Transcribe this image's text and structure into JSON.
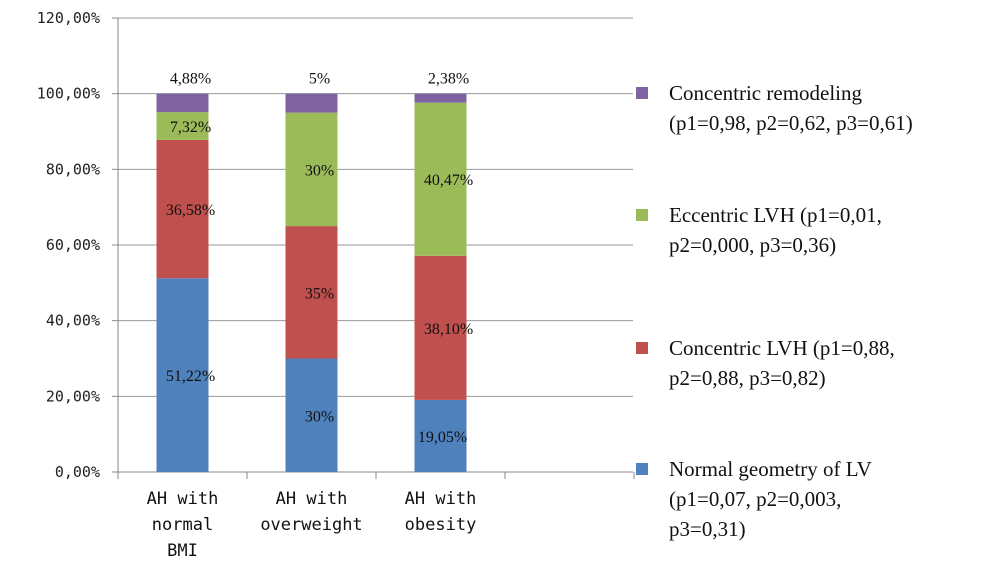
{
  "chart_data": {
    "type": "bar",
    "stacked": true,
    "categories": [
      [
        "AH with",
        "normal",
        "BMI"
      ],
      [
        "AH with",
        "overweight"
      ],
      [
        "AH with",
        "obesity"
      ]
    ],
    "ylim": [
      0,
      120
    ],
    "yticks": [
      "0,00%",
      "20,00%",
      "40,00%",
      "60,00%",
      "80,00%",
      "100,00%",
      "120,00%"
    ],
    "ytick_values": [
      0,
      20,
      40,
      60,
      80,
      100,
      120
    ],
    "grid": true,
    "legend_position": "right",
    "series": [
      {
        "name": "Normal geometry of LV (p1=0,07, p2=0,003, p3=0,31)",
        "legend_lines": [
          "Normal geometry of LV",
          "(p1=0,07, p2=0,003,",
          "p3=0,31)"
        ],
        "color": "#4f81bd",
        "values": [
          51.22,
          30,
          19.05
        ],
        "labels": [
          "51,22%",
          "30%",
          "19,05%"
        ]
      },
      {
        "name": "Concentric LVH (p1=0,88, p2=0,88, p3=0,82)",
        "legend_lines": [
          "Concentric LVH (p1=0,88,",
          "p2=0,88, p3=0,82)"
        ],
        "color": "#c0504d",
        "values": [
          36.58,
          35,
          38.1
        ],
        "labels": [
          "36,58%",
          "35%",
          "38,10%"
        ]
      },
      {
        "name": "Eccentric LVH (p1=0,01, p2=0,000, p3=0,36)",
        "legend_lines": [
          "Eccentric LVH (p1=0,01,",
          "p2=0,000, p3=0,36)"
        ],
        "color": "#9bbb59",
        "values": [
          7.32,
          30,
          40.47
        ],
        "labels": [
          "7,32%",
          "30%",
          "40,47%"
        ]
      },
      {
        "name": "Concentric remodeling (p1=0,98, p2=0,62, p3=0,61)",
        "legend_lines": [
          "Concentric remodeling",
          "(p1=0,98, p2=0,62, p3=0,61)"
        ],
        "color": "#8064a2",
        "values": [
          4.88,
          5,
          2.38
        ],
        "labels": [
          "4,88%",
          "5%",
          "2,38%"
        ]
      }
    ]
  }
}
